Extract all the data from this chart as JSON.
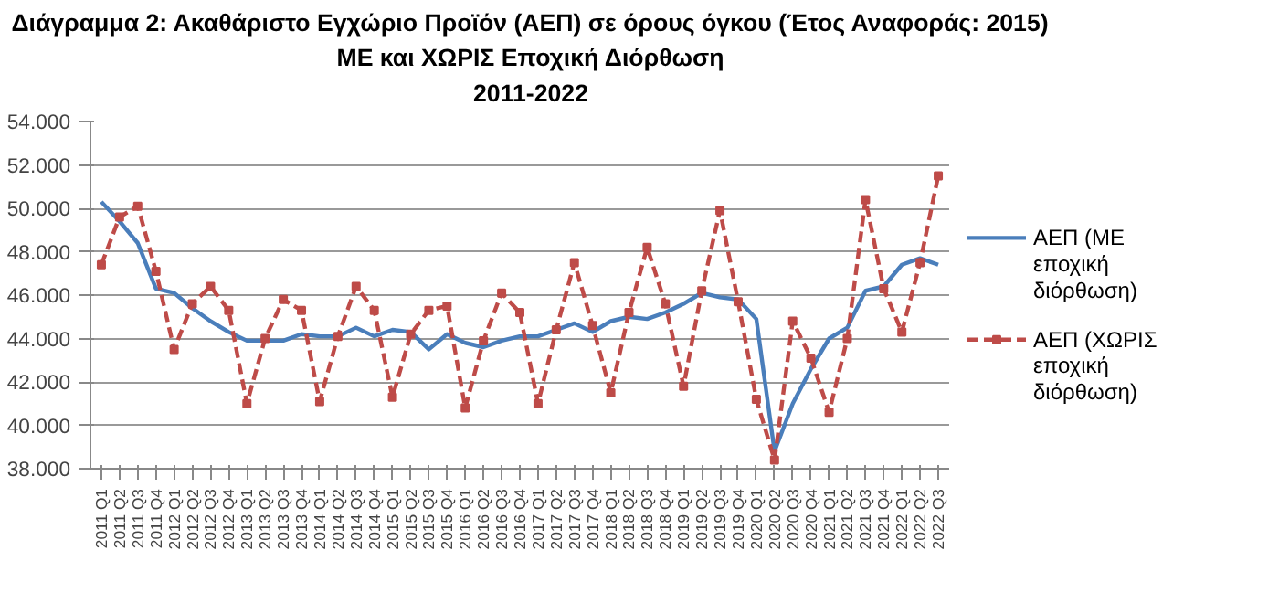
{
  "chart_data": {
    "type": "line",
    "title": "Διάγραμμα 2: Ακαθάριστο Εγχώριο Προϊόν (ΑΕΠ) σε όρους όγκου (Έτος Αναφοράς: 2015)",
    "subtitle": "ΜΕ και ΧΩΡΙΣ Εποχική Διόρθωση\n2011-2022",
    "categories": [
      "2011 Q1",
      "2011 Q2",
      "2011 Q3",
      "2011 Q4",
      "2012 Q1",
      "2012 Q2",
      "2012 Q3",
      "2012 Q4",
      "2013 Q1",
      "2013 Q2",
      "2013 Q3",
      "2013 Q4",
      "2014 Q1",
      "2014 Q2",
      "2014 Q3",
      "2014 Q4",
      "2015 Q1",
      "2015 Q2",
      "2015 Q3",
      "2015 Q4",
      "2016 Q1",
      "2016 Q2",
      "2016 Q3",
      "2016 Q4",
      "2017 Q1",
      "2017 Q2",
      "2017 Q3",
      "2017 Q4",
      "2018 Q1",
      "2018 Q2",
      "2018 Q3",
      "2018 Q4",
      "2019 Q1",
      "2019 Q2",
      "2019 Q3",
      "2019 Q4",
      "2020 Q1",
      "2020 Q2",
      "2020 Q3",
      "2020 Q4",
      "2021 Q1",
      "2021 Q2",
      "2021 Q3",
      "2021 Q4",
      "2022 Q1",
      "2022 Q2",
      "2022 Q3"
    ],
    "series": [
      {
        "name": "ΑΕΠ (ΜΕ εποχική διόρθωση)",
        "color": "#4a7ebb",
        "line_style": "solid",
        "marker": "none",
        "values": [
          50.3,
          49.4,
          48.4,
          46.3,
          46.1,
          45.4,
          44.8,
          44.3,
          43.9,
          43.9,
          43.9,
          44.2,
          44.1,
          44.1,
          44.5,
          44.1,
          44.4,
          44.3,
          43.5,
          44.2,
          43.8,
          43.6,
          43.9,
          44.1,
          44.1,
          44.4,
          44.7,
          44.3,
          44.8,
          45.0,
          44.9,
          45.2,
          45.6,
          46.1,
          45.9,
          45.8,
          44.9,
          38.8,
          41.0,
          42.6,
          44.0,
          44.5,
          46.2,
          46.4,
          47.4,
          47.7,
          47.4
        ]
      },
      {
        "name": "ΑΕΠ (ΧΩΡΙΣ εποχική διόρθωση)",
        "color": "#be4b48",
        "line_style": "dashed",
        "marker": "square",
        "values": [
          47.4,
          49.6,
          50.1,
          47.1,
          43.5,
          45.6,
          46.4,
          45.3,
          41.0,
          44.0,
          45.8,
          45.3,
          41.1,
          44.1,
          46.4,
          45.3,
          41.3,
          44.2,
          45.3,
          45.5,
          40.8,
          43.9,
          46.1,
          45.2,
          41.0,
          44.4,
          47.5,
          44.6,
          41.5,
          45.2,
          48.2,
          45.6,
          41.8,
          46.2,
          49.9,
          45.7,
          41.2,
          38.4,
          44.8,
          43.1,
          40.6,
          44.0,
          50.4,
          46.3,
          44.3,
          47.5,
          51.5
        ]
      }
    ],
    "ylim": [
      38,
      54
    ],
    "yticks": [
      {
        "value": 38,
        "label": "38.000"
      },
      {
        "value": 40,
        "label": "40.000"
      },
      {
        "value": 42,
        "label": "42.000"
      },
      {
        "value": 44,
        "label": "44.000"
      },
      {
        "value": 46,
        "label": "46.000"
      },
      {
        "value": 48,
        "label": "48.000"
      },
      {
        "value": 50,
        "label": "50.000"
      },
      {
        "value": 52,
        "label": "52.000"
      },
      {
        "value": 54,
        "label": "54.000"
      }
    ],
    "grid": "y",
    "legend": "right"
  }
}
